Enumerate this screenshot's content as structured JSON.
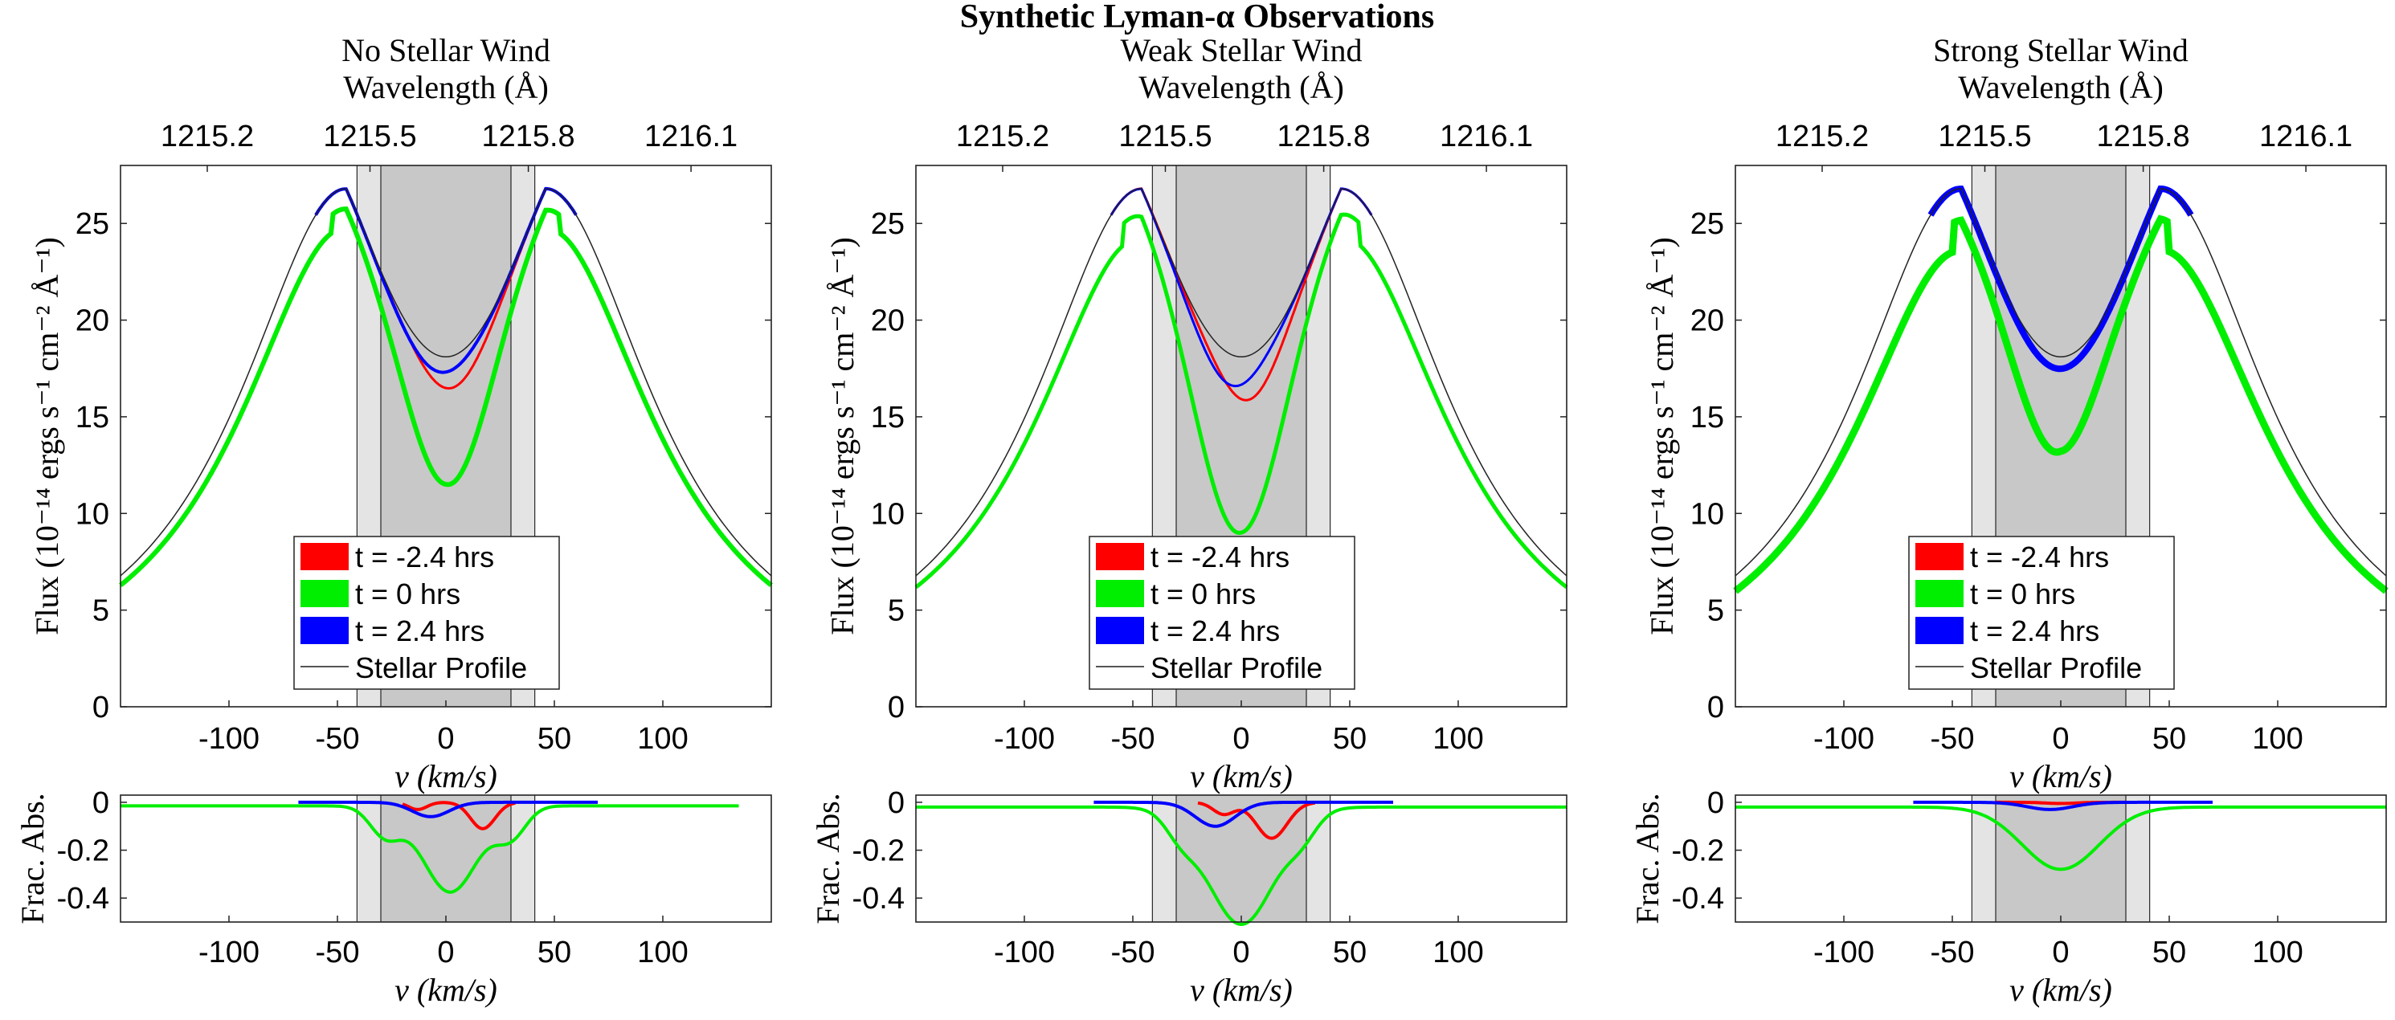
{
  "figure_title": "Synthetic Lyman-α Observations",
  "colors": {
    "red": "#ff0000",
    "green": "#00ee00",
    "blue": "#0000ff",
    "stellar": "#707070",
    "shade_outer": "#e4e4e4",
    "shade_inner": "#c8c8c8"
  },
  "labels": {
    "top_axis": "Wavelength (Å)",
    "main_xlabel": "v (km/s)",
    "main_ylabel": "Flux (10⁻¹⁴ ergs s⁻¹ cm⁻² Å⁻¹)",
    "frac_ylabel": "Frac. Abs.",
    "frac_xlabel": "v (km/s)"
  },
  "legend": [
    "t = -2.4 hrs",
    "t = 0 hrs",
    "t = 2.4 hrs",
    "Stellar Profile"
  ],
  "chart_data": [
    {
      "type": "line",
      "title": "No Stellar Wind",
      "xlim": [
        -150,
        150
      ],
      "ylim": [
        0,
        28
      ],
      "xticks": [
        -100,
        -50,
        0,
        50,
        100
      ],
      "yticks": [
        0,
        5,
        10,
        15,
        20,
        25
      ],
      "top_ticks": [
        {
          "v": -110,
          "label": "1215.2"
        },
        {
          "v": -35,
          "label": "1215.5"
        },
        {
          "v": 38,
          "label": "1215.8"
        },
        {
          "v": 113,
          "label": "1216.1"
        }
      ],
      "shade_outer": [
        -41,
        41
      ],
      "shade_inner": [
        -30,
        30
      ],
      "stellar": {
        "peak_v": 46,
        "peak": 26.8,
        "center": 18.1
      },
      "series": [
        {
          "name": "t = -2.4 hrs",
          "color": "red",
          "center": 16.5,
          "cv": 3,
          "halfwidth": 32,
          "lw": 3
        },
        {
          "name": "t = 0 hrs",
          "color": "green",
          "center": 11.5,
          "cv": 1,
          "halfwidth": 40,
          "lw": 6
        },
        {
          "name": "t = 2.4 hrs",
          "color": "blue",
          "center": 17.4,
          "cv": -5,
          "halfwidth": 32,
          "lw": 4
        }
      ],
      "green_scale": 0.963,
      "frac": {
        "xlim": [
          -150,
          150
        ],
        "ylim": [
          -0.5,
          0.03
        ],
        "xticks": [
          -100,
          -50,
          0,
          50,
          100
        ],
        "yticks": [
          0,
          -0.2,
          -0.4
        ],
        "shade_outer": [
          -41,
          41
        ],
        "shade_inner": [
          -30,
          30
        ],
        "red": {
          "range": [
            -20,
            32
          ],
          "dips": [
            [
              -13,
              -0.03,
              6
            ],
            [
              17,
              -0.11,
              8
            ]
          ]
        },
        "green": {
          "range": [
            -150,
            135
          ],
          "base": -0.015,
          "dips": [
            [
              2,
              -0.36,
              18
            ],
            [
              -28,
              -0.12,
              10
            ],
            [
              30,
              -0.12,
              10
            ]
          ]
        },
        "blue": {
          "range": [
            -68,
            70
          ],
          "dips": [
            [
              -7,
              -0.06,
              12
            ]
          ]
        }
      }
    },
    {
      "type": "line",
      "title": "Weak Stellar Wind",
      "xlim": [
        -150,
        150
      ],
      "ylim": [
        0,
        28
      ],
      "xticks": [
        -100,
        -50,
        0,
        50,
        100
      ],
      "yticks": [
        0,
        5,
        10,
        15,
        20,
        25
      ],
      "top_ticks": [
        {
          "v": -110,
          "label": "1215.2"
        },
        {
          "v": -35,
          "label": "1215.5"
        },
        {
          "v": 38,
          "label": "1215.8"
        },
        {
          "v": 113,
          "label": "1216.1"
        }
      ],
      "shade_outer": [
        -41,
        41
      ],
      "shade_inner": [
        -30,
        30
      ],
      "stellar": {
        "peak_v": 46,
        "peak": 26.8,
        "center": 18.1
      },
      "series": [
        {
          "name": "t = -2.4 hrs",
          "color": "red",
          "center": 15.9,
          "cv": 4,
          "halfwidth": 30,
          "lw": 3
        },
        {
          "name": "t = 0 hrs",
          "color": "green",
          "center": 9.0,
          "cv": -1,
          "halfwidth": 42,
          "lw": 5
        },
        {
          "name": "t = 2.4 hrs",
          "color": "blue",
          "center": 16.7,
          "cv": -6,
          "halfwidth": 30,
          "lw": 3
        }
      ],
      "green_scale": 0.955,
      "frac": {
        "xlim": [
          -150,
          150
        ],
        "ylim": [
          -0.5,
          0.03
        ],
        "xticks": [
          -100,
          -50,
          0,
          50,
          100
        ],
        "yticks": [
          0,
          -0.2,
          -0.4
        ],
        "shade_outer": [
          -41,
          41
        ],
        "shade_inner": [
          -30,
          30
        ],
        "red": {
          "range": [
            -20,
            34
          ],
          "dips": [
            [
              -8,
              -0.05,
              7
            ],
            [
              14,
              -0.15,
              10
            ]
          ]
        },
        "green": {
          "range": [
            -150,
            150
          ],
          "base": -0.02,
          "dips": [
            [
              0,
              -0.49,
              22
            ],
            [
              -28,
              -0.08,
              10
            ],
            [
              28,
              -0.08,
              10
            ]
          ]
        },
        "blue": {
          "range": [
            -68,
            70
          ],
          "dips": [
            [
              -12,
              -0.1,
              13
            ]
          ]
        }
      }
    },
    {
      "type": "line",
      "title": "Strong Stellar Wind",
      "xlim": [
        -150,
        150
      ],
      "ylim": [
        0,
        28
      ],
      "xticks": [
        -100,
        -50,
        0,
        50,
        100
      ],
      "yticks": [
        0,
        5,
        10,
        15,
        20,
        25
      ],
      "top_ticks": [
        {
          "v": -110,
          "label": "1215.2"
        },
        {
          "v": -35,
          "label": "1215.5"
        },
        {
          "v": 38,
          "label": "1215.8"
        },
        {
          "v": 113,
          "label": "1216.1"
        }
      ],
      "shade_outer": [
        -41,
        41
      ],
      "shade_inner": [
        -30,
        30
      ],
      "stellar": {
        "peak_v": 46,
        "peak": 26.8,
        "center": 18.1
      },
      "series": [
        {
          "name": "t = -2.4 hrs",
          "color": "red",
          "center": 17.6,
          "cv": -2,
          "halfwidth": 34,
          "lw": 3
        },
        {
          "name": "t = 0 hrs",
          "color": "green",
          "center": 13.2,
          "cv": -2,
          "halfwidth": 38,
          "lw": 9
        },
        {
          "name": "t = 2.4 hrs",
          "color": "blue",
          "center": 17.5,
          "cv": -2,
          "halfwidth": 34,
          "lw": 8
        }
      ],
      "green_scale": 0.94,
      "frac": {
        "xlim": [
          -150,
          150
        ],
        "ylim": [
          -0.5,
          0.03
        ],
        "xticks": [
          -100,
          -50,
          0,
          50,
          100
        ],
        "yticks": [
          0,
          -0.2,
          -0.4
        ],
        "shade_outer": [
          -41,
          41
        ],
        "shade_inner": [
          -30,
          30
        ],
        "red": {
          "range": [
            -30,
            30
          ],
          "dips": [
            [
              0,
              -0.005,
              10
            ]
          ]
        },
        "green": {
          "range": [
            -150,
            150
          ],
          "base": -0.02,
          "dips": [
            [
              0,
              -0.26,
              25
            ]
          ]
        },
        "blue": {
          "range": [
            -68,
            70
          ],
          "dips": [
            [
              -5,
              -0.03,
              15
            ]
          ]
        }
      }
    }
  ]
}
